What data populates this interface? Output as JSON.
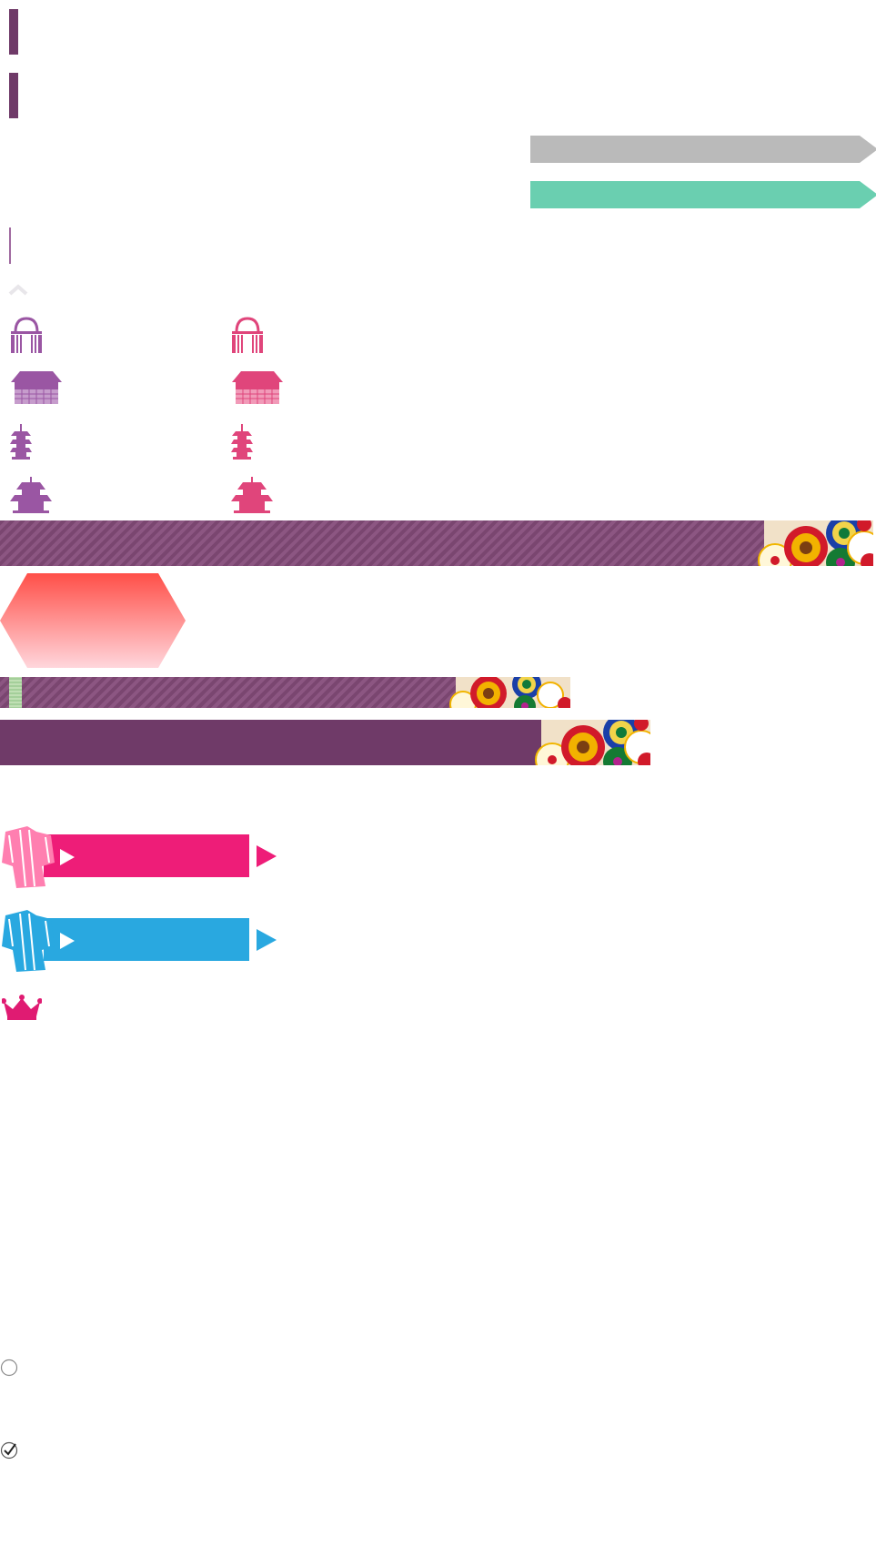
{
  "colors": {
    "plum": "#6f3a68",
    "plum_stripe": "#8c5682",
    "purple_icon": "#9a56a3",
    "pink_icon": "#e0457b",
    "gray_arrow": "#bababa",
    "mint_arrow": "#6acfb0",
    "hex_top": "#ff4f48",
    "hex_bottom": "#ffd6dc",
    "magenta_button": "#ee1d78",
    "cyan_button": "#29a8e0",
    "crown": "#e01b72",
    "moon": "#ffe600"
  },
  "icons": {
    "gate_purple": "torii-gate-icon",
    "gate_pink": "torii-gate-icon",
    "temple_purple": "temple-icon",
    "temple_pink": "temple-icon",
    "pagoda_purple": "pagoda-icon",
    "pagoda_pink": "pagoda-icon",
    "pavilion_purple": "pavilion-icon",
    "pavilion_pink": "pavilion-icon",
    "kimono_pink": "kimono-icon",
    "kimono_blue": "kimono-icon",
    "crown": "crown-icon",
    "moon": "crescent-moon-icon",
    "radio_empty": "radio-unchecked-icon",
    "radio_checked": "checkmark-circle-icon"
  },
  "controls": {
    "checkbox_unchecked": false,
    "checkbox_checked": true
  }
}
